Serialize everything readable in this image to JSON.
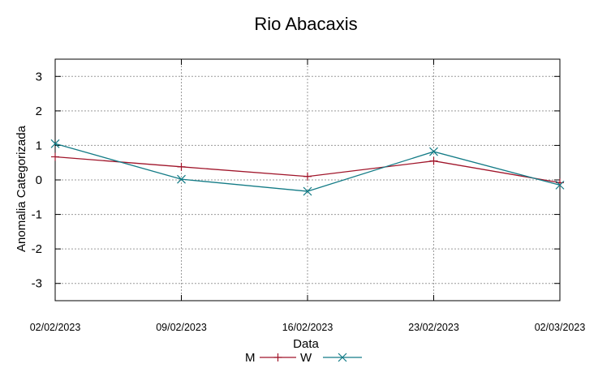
{
  "chart_data": {
    "type": "line",
    "title": "Rio Abacaxis",
    "xlabel": "Data",
    "ylabel": "Anomalia Categorizada",
    "categories": [
      "02/02/2023",
      "09/02/2023",
      "16/02/2023",
      "23/02/2023",
      "02/03/2023"
    ],
    "ylim": [
      -3.5,
      3.5
    ],
    "yticks": [
      3,
      2,
      1,
      0,
      -1,
      -2,
      -3
    ],
    "ytick_labels": [
      "3",
      "2",
      "1",
      "0",
      "-1",
      "-2",
      "-3"
    ],
    "grid": true,
    "legend_position": "bottom-center",
    "series": [
      {
        "name": "M",
        "color": "#a0152a",
        "marker": "plus",
        "values": [
          0.67,
          0.38,
          0.1,
          0.55,
          -0.08
        ]
      },
      {
        "name": "W",
        "color": "#137b86",
        "marker": "cross",
        "values": [
          1.05,
          0.02,
          -0.33,
          0.82,
          -0.15
        ]
      }
    ]
  }
}
